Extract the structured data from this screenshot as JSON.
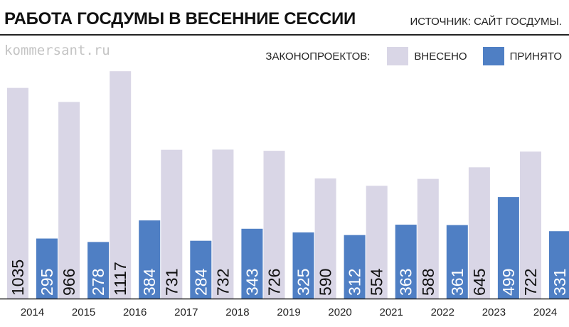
{
  "header": {
    "title": "РАБОТА ГОСДУМЫ В ВЕСЕННИЕ СЕССИИ",
    "source": "ИСТОЧНИК: САЙТ ГОСДУМЫ."
  },
  "watermark": "kommersant.ru",
  "legend": {
    "prefix": "ЗАКОНОПРОЕКТОВ:",
    "items": [
      {
        "label": "ВНЕСЕНО",
        "color": "#d9d6e6"
      },
      {
        "label": "ПРИНЯТО",
        "color": "#4f7fc4"
      }
    ]
  },
  "chart_data": {
    "type": "bar",
    "title": "РАБОТА ГОСДУМЫ В ВЕСЕННИЕ СЕССИИ",
    "categories": [
      "2014",
      "2015",
      "2016",
      "2017",
      "2018",
      "2019",
      "2020",
      "2021",
      "2022",
      "2023",
      "2024"
    ],
    "series": [
      {
        "name": "ВНЕСЕНО",
        "color": "#d9d6e6",
        "label_color": "#111111",
        "values": [
          1035,
          966,
          1117,
          731,
          732,
          726,
          590,
          554,
          588,
          645,
          722
        ]
      },
      {
        "name": "ПРИНЯТО",
        "color": "#4f7fc4",
        "label_color": "#ffffff",
        "values": [
          295,
          278,
          384,
          284,
          343,
          325,
          312,
          363,
          361,
          499,
          331
        ]
      }
    ],
    "ylim": [
      0,
      1170
    ],
    "grid": false,
    "legend_position": "top-right",
    "data_labels": "inside-bottom-vertical"
  }
}
